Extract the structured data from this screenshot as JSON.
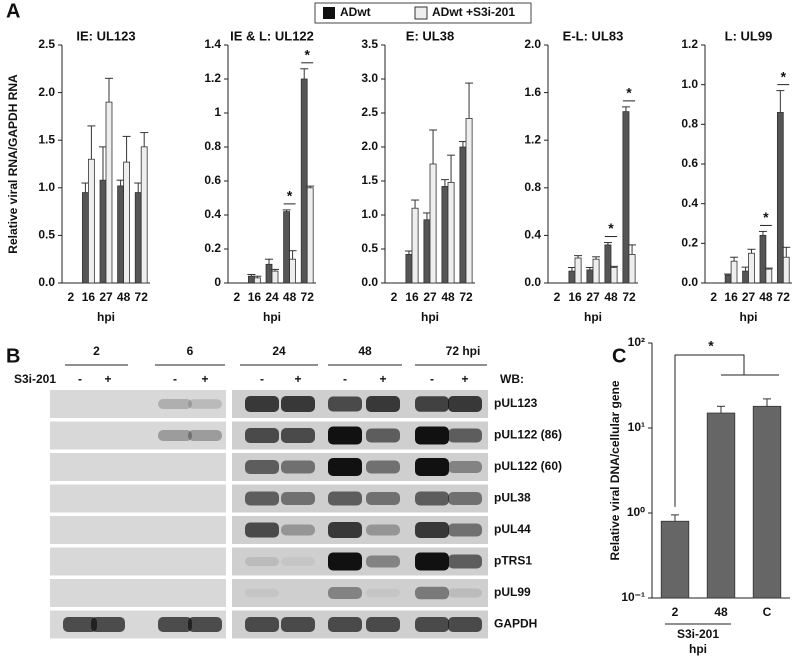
{
  "chart_data": [
    {
      "type": "bar",
      "title": "IE: UL123",
      "ylabel": "Relative viral RNA/GAPDH RNA",
      "xlabel": "hpi",
      "categories": [
        "2",
        "16",
        "27",
        "48",
        "72"
      ],
      "series": [
        {
          "name": "ADwt",
          "color": "#555555",
          "values": [
            0,
            0.95,
            1.08,
            1.02,
            0.95
          ],
          "errors": [
            0,
            0.1,
            0.35,
            0.06,
            0.1
          ]
        },
        {
          "name": "ADwt +S3i-201",
          "color": "#eeeeee",
          "values": [
            0,
            1.3,
            1.9,
            1.27,
            1.43
          ],
          "errors": [
            0,
            0.35,
            0.25,
            0.27,
            0.15
          ]
        }
      ],
      "ylim": [
        0,
        2.5
      ],
      "yticks": [
        {
          "value": 0,
          "label": "0.0"
        },
        {
          "value": 0.5,
          "label": "0.5"
        },
        {
          "value": 1,
          "label": "1.0"
        },
        {
          "value": 1.5,
          "label": "1.5"
        },
        {
          "value": 2,
          "label": "2.0"
        },
        {
          "value": 2.5,
          "label": "2.5"
        }
      ],
      "annotations": []
    },
    {
      "type": "bar",
      "title": "IE & L: UL122",
      "xlabel": "hpi",
      "categories": [
        "2",
        "16",
        "24",
        "48",
        "72"
      ],
      "series": [
        {
          "name": "ADwt",
          "color": "#555555",
          "values": [
            0,
            0.04,
            0.11,
            0.42,
            1.2
          ],
          "errors": [
            0,
            0.01,
            0.03,
            0.01,
            0.06
          ]
        },
        {
          "name": "ADwt +S3i-201",
          "color": "#eeeeee",
          "values": [
            0,
            0.03,
            0.07,
            0.14,
            0.56
          ],
          "errors": [
            0,
            0.01,
            0.01,
            0.05,
            0.01
          ]
        }
      ],
      "ylim": [
        0,
        1.4
      ],
      "yticks": [
        0,
        0.2,
        0.4,
        0.6,
        0.8,
        1,
        1.2,
        1.4
      ],
      "annotations": [
        {
          "text": "*",
          "category": "48"
        },
        {
          "text": "*",
          "category": "72"
        }
      ]
    },
    {
      "type": "bar",
      "title": "E: UL38",
      "xlabel": "hpi",
      "categories": [
        "2",
        "16",
        "27",
        "48",
        "72"
      ],
      "series": [
        {
          "name": "ADwt",
          "color": "#555555",
          "values": [
            0,
            0.42,
            0.93,
            1.42,
            2.0
          ],
          "errors": [
            0,
            0.05,
            0.1,
            0.1,
            0.08
          ]
        },
        {
          "name": "ADwt +S3i-201",
          "color": "#eeeeee",
          "values": [
            0,
            1.1,
            1.75,
            1.48,
            2.42
          ],
          "errors": [
            0,
            0.12,
            0.5,
            0.4,
            0.52
          ]
        }
      ],
      "ylim": [
        0,
        3.5
      ],
      "yticks": [
        {
          "value": 0,
          "label": "0.0"
        },
        {
          "value": 0.5,
          "label": "0.5"
        },
        {
          "value": 1,
          "label": "1.0"
        },
        {
          "value": 1.5,
          "label": "1.5"
        },
        {
          "value": 2,
          "label": "2.0"
        },
        {
          "value": 2.5,
          "label": "2.5"
        },
        {
          "value": 3,
          "label": "3.0"
        },
        {
          "value": 3.5,
          "label": "3.5"
        }
      ],
      "annotations": []
    },
    {
      "type": "bar",
      "title": "E-L: UL83",
      "xlabel": "hpi",
      "categories": [
        "2",
        "16",
        "27",
        "48",
        "72"
      ],
      "series": [
        {
          "name": "ADwt",
          "color": "#555555",
          "values": [
            0,
            0.1,
            0.11,
            0.32,
            1.44
          ],
          "errors": [
            0,
            0.03,
            0.02,
            0.02,
            0.04
          ]
        },
        {
          "name": "ADwt +S3i-201",
          "color": "#eeeeee",
          "values": [
            0,
            0.21,
            0.2,
            0.13,
            0.24
          ],
          "errors": [
            0,
            0.02,
            0.02,
            0.01,
            0.08
          ]
        }
      ],
      "ylim": [
        0,
        2.0
      ],
      "yticks": [
        {
          "value": 0,
          "label": "0.0"
        },
        0.4,
        0.8,
        1.2,
        1.6,
        {
          "value": 2,
          "label": "2.0"
        }
      ],
      "annotations": [
        {
          "text": "*",
          "category": "48"
        },
        {
          "text": "*",
          "category": "72"
        }
      ]
    },
    {
      "type": "bar",
      "title": "L: UL99",
      "xlabel": "hpi",
      "categories": [
        "2",
        "16",
        "27",
        "48",
        "72"
      ],
      "series": [
        {
          "name": "ADwt",
          "color": "#555555",
          "values": [
            0,
            0.04,
            0.06,
            0.24,
            0.86
          ],
          "errors": [
            0,
            0.005,
            0.02,
            0.02,
            0.11
          ]
        },
        {
          "name": "ADwt +S3i-201",
          "color": "#eeeeee",
          "values": [
            0,
            0.11,
            0.15,
            0.07,
            0.13
          ],
          "errors": [
            0,
            0.02,
            0.02,
            0.005,
            0.05
          ]
        }
      ],
      "ylim": [
        0,
        1.2
      ],
      "yticks": [
        {
          "value": 0,
          "label": "0.0"
        },
        0.2,
        0.4,
        0.6,
        0.8,
        {
          "value": 1,
          "label": "1.0"
        },
        1.2
      ],
      "annotations": [
        {
          "text": "*",
          "category": "48"
        },
        {
          "text": "*",
          "category": "72"
        }
      ]
    },
    {
      "type": "logbar",
      "ylabel": "Relative viral DNA/cellular gene",
      "xlabel": "hpi",
      "log_scale": true,
      "categories": [
        "2",
        "48",
        "C"
      ],
      "group_label": "S3i-201",
      "series": [
        {
          "color": "#666666",
          "values": [
            0.8,
            15,
            18
          ],
          "errors": [
            0.15,
            3,
            4
          ]
        }
      ],
      "ylim": [
        0.1,
        100
      ],
      "yticks": [
        {
          "value": 0.1,
          "label": "10⁻¹"
        },
        {
          "value": 1,
          "label": "10⁰"
        },
        {
          "value": 10,
          "label": "10¹"
        },
        {
          "value": 100,
          "label": "10²"
        }
      ],
      "annotations": [
        {
          "text": "*"
        }
      ]
    }
  ],
  "panels": [
    "A",
    "B",
    "C"
  ],
  "blot": {
    "timepoints": [
      "2",
      "6",
      "24",
      "48",
      "72 hpi"
    ],
    "treatment": "S3i-201",
    "signs": [
      "-",
      "+",
      "-",
      "+",
      "-",
      "+",
      "-",
      "+",
      "-",
      "+"
    ],
    "wb_label": "WB:",
    "proteins": [
      "pUL123",
      "pUL122 (86)",
      "pUL122 (60)",
      "pUL38",
      "pUL44",
      "pTRS1",
      "pUL99",
      "GAPDH"
    ]
  }
}
